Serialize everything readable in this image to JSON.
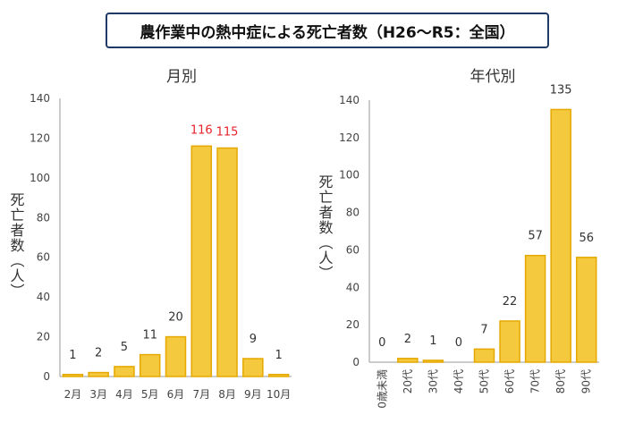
{
  "header": {
    "title": "農作業中の熱中症による死亡者数（H26～R5：全国）"
  },
  "colors": {
    "bar_fill": "#f5c93d",
    "bar_stroke": "#e5a800",
    "highlight_label": "#e8222a",
    "axis": "#999999",
    "title_border": "#1f3a68"
  },
  "chart_data": [
    {
      "type": "bar",
      "title": "月別",
      "ylabel": "死亡者数（人）",
      "categories": [
        "2月",
        "3月",
        "4月",
        "5月",
        "6月",
        "7月",
        "8月",
        "9月",
        "10月"
      ],
      "values": [
        1,
        2,
        5,
        11,
        20,
        116,
        115,
        9,
        1
      ],
      "value_labels": [
        "1",
        "2",
        "5",
        "11",
        "20",
        "116",
        "115",
        "9",
        "1"
      ],
      "highlight": [
        false,
        false,
        false,
        false,
        false,
        true,
        true,
        false,
        false
      ],
      "ylim": [
        0,
        140
      ],
      "yticks": [
        "0",
        "20",
        "40",
        "60",
        "80",
        "100",
        "120",
        "140"
      ],
      "grid": false
    },
    {
      "type": "bar",
      "title": "年代別",
      "ylabel": "死亡者数（人）",
      "categories": [
        "0歳未満",
        "20代",
        "30代",
        "40代",
        "50代",
        "60代",
        "70代",
        "80代",
        "90代"
      ],
      "values": [
        0,
        2,
        1,
        0,
        7,
        22,
        57,
        135,
        56
      ],
      "value_labels": [
        "0",
        "2",
        "1",
        "0",
        "7",
        "22",
        "57",
        "135",
        "56"
      ],
      "highlight": [
        false,
        false,
        false,
        false,
        false,
        false,
        false,
        false,
        false
      ],
      "ylim": [
        0,
        140
      ],
      "yticks": [
        "0",
        "20",
        "40",
        "60",
        "80",
        "100",
        "120",
        "140"
      ],
      "grid": false
    }
  ]
}
